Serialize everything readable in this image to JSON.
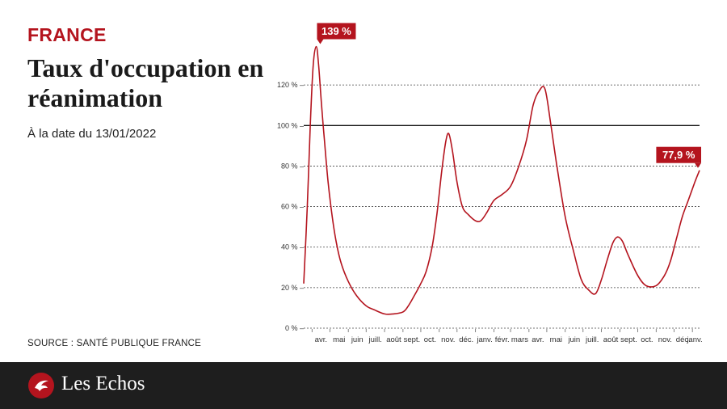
{
  "header": {
    "kicker": "FRANCE",
    "title": "Taux d'occupation en réanimation",
    "subtitle": "À la date du 13/01/2022"
  },
  "source": "SOURCE : SANTÉ PUBLIQUE FRANCE",
  "footer": {
    "brand": "Les Echos"
  },
  "colors": {
    "accent": "#b4141e",
    "line": "#b4141e",
    "footer": "#1e1e1e"
  },
  "chart_data": {
    "type": "line",
    "title": "Taux d'occupation en réanimation",
    "subtitle": "À la date du 13/01/2022",
    "y_ticks": [
      "0 %",
      "20 %",
      "40 %",
      "60 %",
      "80 %",
      "100 %",
      "120 %"
    ],
    "ylim": [
      0,
      140
    ],
    "reference_line": 100,
    "x_labels": [
      "avr.",
      "mai",
      "juin",
      "juill.",
      "août",
      "sept.",
      "oct.",
      "nov.",
      "déc.",
      "janv.",
      "févr.",
      "mars",
      "avr.",
      "mai",
      "juin",
      "juill.",
      "août",
      "sept.",
      "oct.",
      "nov.",
      "déc.",
      "janv."
    ],
    "x_range": [
      "2020-03-18",
      "2022-01-13"
    ],
    "annotations": [
      {
        "date": "2020-04-08",
        "value": 139,
        "label": "139 %"
      },
      {
        "date": "2022-01-13",
        "value": 77.9,
        "label": "77,9 %"
      }
    ],
    "series": [
      {
        "points": [
          [
            "2020-03-18",
            22
          ],
          [
            "2020-03-24",
            60
          ],
          [
            "2020-03-29",
            100
          ],
          [
            "2020-04-03",
            130
          ],
          [
            "2020-04-08",
            139
          ],
          [
            "2020-04-12",
            130
          ],
          [
            "2020-04-17",
            110
          ],
          [
            "2020-04-22",
            92
          ],
          [
            "2020-04-28",
            72
          ],
          [
            "2020-05-05",
            55
          ],
          [
            "2020-05-12",
            42
          ],
          [
            "2020-05-20",
            32
          ],
          [
            "2020-06-01",
            23
          ],
          [
            "2020-06-15",
            16
          ],
          [
            "2020-07-01",
            11
          ],
          [
            "2020-07-15",
            9
          ],
          [
            "2020-08-01",
            7
          ],
          [
            "2020-08-15",
            7
          ],
          [
            "2020-09-01",
            8
          ],
          [
            "2020-09-10",
            11
          ],
          [
            "2020-09-20",
            16
          ],
          [
            "2020-10-01",
            22
          ],
          [
            "2020-10-10",
            28
          ],
          [
            "2020-10-20",
            40
          ],
          [
            "2020-10-28",
            56
          ],
          [
            "2020-11-05",
            77
          ],
          [
            "2020-11-12",
            92
          ],
          [
            "2020-11-17",
            96
          ],
          [
            "2020-11-23",
            88
          ],
          [
            "2020-12-01",
            72
          ],
          [
            "2020-12-10",
            60
          ],
          [
            "2020-12-20",
            56
          ],
          [
            "2021-01-01",
            53
          ],
          [
            "2021-01-10",
            53
          ],
          [
            "2021-01-20",
            57
          ],
          [
            "2021-02-01",
            63
          ],
          [
            "2021-02-15",
            66
          ],
          [
            "2021-03-01",
            70
          ],
          [
            "2021-03-15",
            80
          ],
          [
            "2021-03-28",
            93
          ],
          [
            "2021-04-08",
            110
          ],
          [
            "2021-04-18",
            117
          ],
          [
            "2021-04-28",
            118
          ],
          [
            "2021-05-08",
            100
          ],
          [
            "2021-05-18",
            80
          ],
          [
            "2021-06-01",
            55
          ],
          [
            "2021-06-15",
            38
          ],
          [
            "2021-06-28",
            24
          ],
          [
            "2021-07-10",
            19
          ],
          [
            "2021-07-22",
            17
          ],
          [
            "2021-08-01",
            24
          ],
          [
            "2021-08-10",
            33
          ],
          [
            "2021-08-20",
            42
          ],
          [
            "2021-08-28",
            45
          ],
          [
            "2021-09-05",
            43
          ],
          [
            "2021-09-15",
            36
          ],
          [
            "2021-10-01",
            26
          ],
          [
            "2021-10-15",
            21
          ],
          [
            "2021-11-01",
            21
          ],
          [
            "2021-11-15",
            26
          ],
          [
            "2021-11-25",
            33
          ],
          [
            "2021-12-05",
            44
          ],
          [
            "2021-12-15",
            55
          ],
          [
            "2021-12-25",
            63
          ],
          [
            "2022-01-05",
            72
          ],
          [
            "2022-01-13",
            77.9
          ]
        ]
      }
    ]
  }
}
